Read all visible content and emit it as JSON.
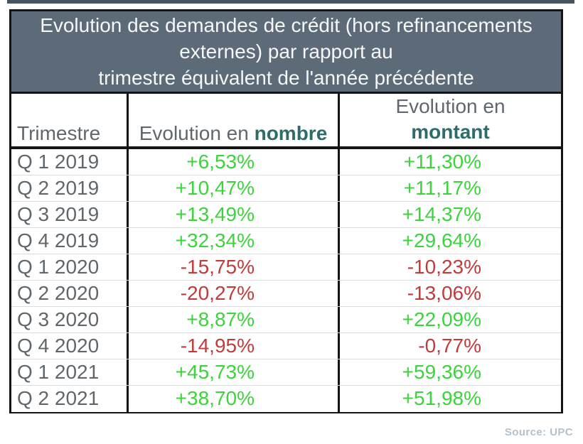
{
  "title": {
    "lines": [
      "Evolution des demandes de crédit (hors refinancements",
      "externes) par rapport au",
      "trimestre équivalent de l'année précédente"
    ]
  },
  "table": {
    "header": {
      "trimestre": "Trimestre",
      "evolution_en_prefix": "Evolution en ",
      "nombre": "nombre",
      "evolution_en": "Evolution en",
      "montant": "montant"
    },
    "rows": [
      {
        "trimestre": "Q 1 2019",
        "nombre": "+6,53%",
        "montant": "+11,30%"
      },
      {
        "trimestre": "Q 2 2019",
        "nombre": "+10,47%",
        "montant": "+11,17%"
      },
      {
        "trimestre": "Q 3 2019",
        "nombre": "+13,49%",
        "montant": "+14,37%"
      },
      {
        "trimestre": "Q 4 2019",
        "nombre": "+32,34%",
        "montant": "+29,64%"
      },
      {
        "trimestre": "Q 1 2020",
        "nombre": "-15,75%",
        "montant": "-10,23%"
      },
      {
        "trimestre": "Q 2 2020",
        "nombre": "-20,27%",
        "montant": "-13,06%"
      },
      {
        "trimestre": "Q 3 2020",
        "nombre": "+8,87%",
        "montant": "+22,09%"
      },
      {
        "trimestre": "Q 4 2020",
        "nombre": "-14,95%",
        "montant": "-0,77%"
      },
      {
        "trimestre": "Q 1 2021",
        "nombre": "+45,73%",
        "montant": "+59,36%"
      },
      {
        "trimestre": "Q 2 2021",
        "nombre": "+38,70%",
        "montant": "+51,98%"
      }
    ]
  },
  "source": "Source: UPC",
  "colors": {
    "positive": "#3dd33d",
    "negative": "#c23b3b",
    "header_background": "#5c6b77",
    "teal_header_text": "#2f6b6b",
    "gray_text": "#60676c",
    "border_black": "#141414"
  },
  "chart_data": {
    "type": "table",
    "title": "Evolution des demandes de crédit (hors refinancements externes) par rapport au trimestre équivalent de l'année précédente",
    "categories": [
      "Q 1 2019",
      "Q 2 2019",
      "Q 3 2019",
      "Q 4 2019",
      "Q 1 2020",
      "Q 2 2020",
      "Q 3 2020",
      "Q 4 2020",
      "Q 1 2021",
      "Q 2 2021"
    ],
    "series": [
      {
        "name": "Evolution en nombre",
        "unit": "%",
        "values": [
          6.53,
          10.47,
          13.49,
          32.34,
          -15.75,
          -20.27,
          8.87,
          -14.95,
          45.73,
          38.7
        ]
      },
      {
        "name": "Evolution en montant",
        "unit": "%",
        "values": [
          11.3,
          11.17,
          14.37,
          29.64,
          -10.23,
          -13.06,
          22.09,
          -0.77,
          59.36,
          51.98
        ]
      }
    ],
    "value_color_rule": "positive values green, negative values red",
    "source": "Source: UPC"
  }
}
